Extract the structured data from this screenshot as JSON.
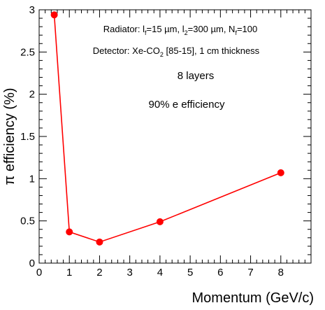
{
  "chart_data": {
    "type": "line",
    "xlabel": "Momentum (GeV/c)",
    "ylabel": "π efficiency (%)",
    "xlim": [
      0,
      9
    ],
    "ylim": [
      0,
      3
    ],
    "x_ticks": [
      "0",
      "1",
      "2",
      "3",
      "4",
      "5",
      "6",
      "7",
      "8"
    ],
    "y_ticks": [
      "0",
      "0.5",
      "1",
      "1.5",
      "2",
      "2.5",
      "3"
    ],
    "series": [
      {
        "x": [
          0.5,
          1,
          2,
          4,
          8
        ],
        "y": [
          2.94,
          0.37,
          0.25,
          0.49,
          1.07
        ],
        "color": "#ff0000"
      }
    ],
    "annotations": {
      "radiator_prefix": "Radiator: l",
      "radiator_sub1": "f",
      "radiator_mid1": "=15 µm, l",
      "radiator_sub2": "2",
      "radiator_mid2": "=300 µm, N",
      "radiator_sub3": "f",
      "radiator_end": "=100",
      "detector_prefix": "Detector: Xe-CO",
      "detector_sub": "2",
      "detector_end": " [85-15], 1 cm thickness",
      "layers": "8 layers",
      "efficiency": "90% e efficiency"
    },
    "grid": false,
    "frame_color": "#000000"
  }
}
